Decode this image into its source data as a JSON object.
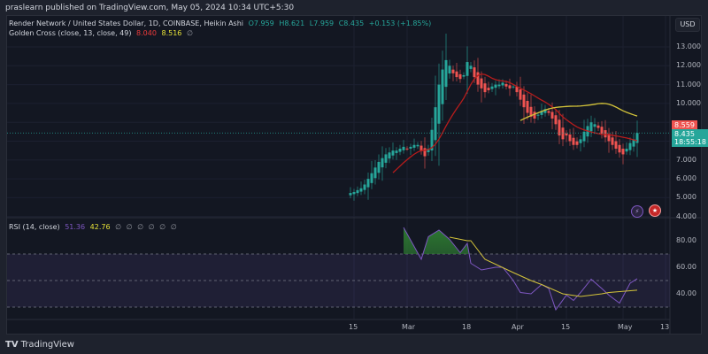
{
  "header": {
    "published": "praslearn published on TradingView.com, May 05, 2024 10:34 UTC+5:30"
  },
  "main_legend": {
    "symbol": "Render Network / United States Dollar, 1D, COINBASE, Heikin Ashi",
    "o": "O7.959",
    "h": "H8.621",
    "l": "L7.959",
    "c": "C8.435",
    "change": "+0.153 (+1.85%)"
  },
  "golden_cross": {
    "label": "Golden Cross (close, 13, close, 49)",
    "fast": "8.040",
    "slow": "8.516",
    "hidden": "∅"
  },
  "rsi_legend": {
    "label": "RSI (14, close)",
    "rsi": "51.36",
    "ma": "42.76",
    "hidden": [
      "∅",
      "∅",
      "∅",
      "∅",
      "∅",
      "∅"
    ]
  },
  "currency": "USD",
  "price_labels": {
    "ma_value": "8.559",
    "last_price": "8.435",
    "countdown": "18:55:18"
  },
  "brand": "TradingView",
  "colors": {
    "up": "#26a69a",
    "down": "#ef5350",
    "fast_ma": "#b71c1c",
    "slow_ma": "#d4c43a",
    "rsi": "#7e57c2",
    "rsi_ma": "#d4c43a"
  },
  "chart_data": [
    {
      "type": "candlestick",
      "style": "Heikin Ashi",
      "start_date": "2024-02-14",
      "interval": "1D",
      "closes": [
        5.25,
        5.3,
        5.4,
        5.5,
        5.7,
        6.0,
        6.3,
        6.6,
        6.9,
        7.1,
        7.3,
        7.4,
        7.5,
        7.5,
        7.6,
        7.7,
        7.6,
        7.7,
        7.8,
        7.8,
        7.5,
        7.2,
        7.6,
        8.6,
        9.8,
        11.0,
        11.8,
        12.3,
        12.0,
        11.6,
        11.4,
        11.3,
        11.5,
        12.2,
        12.0,
        11.4,
        11.0,
        10.8,
        10.6,
        10.7,
        10.9,
        11.0,
        11.0,
        11.1,
        10.9,
        10.8,
        10.9,
        10.6,
        10.2,
        9.8,
        9.5,
        9.3,
        9.2,
        9.4,
        9.6,
        9.7,
        9.5,
        9.2,
        8.9,
        8.3,
        8.1,
        8.3,
        8.0,
        7.8,
        7.8,
        8.1,
        8.5,
        8.8,
        9.0,
        8.9,
        8.7,
        8.4,
        8.2,
        8.0,
        7.8,
        7.6,
        7.4,
        7.3,
        7.6,
        7.9,
        8.1,
        8.435
      ],
      "indicators": [
        {
          "name": "Golden Cross fast",
          "period": 13
        },
        {
          "name": "Golden Cross slow",
          "period": 49
        }
      ],
      "y_ticks": [
        "13.000",
        "12.000",
        "11.000",
        "10.000",
        "7.000",
        "6.000",
        "5.000",
        "4.000"
      ],
      "ylim": [
        4,
        13.5
      ],
      "x_ticks": [
        "15",
        "Mar",
        "18",
        "Apr",
        "15",
        "May",
        "13"
      ],
      "grid": true
    },
    {
      "type": "line",
      "title": "RSI (14, close)",
      "rsi": [
        [
          "2024-02-29",
          90
        ],
        [
          "2024-03-05",
          66
        ],
        [
          "2024-03-07",
          83
        ],
        [
          "2024-03-10",
          88
        ],
        [
          "2024-03-13",
          81
        ],
        [
          "2024-03-16",
          71
        ],
        [
          "2024-03-18",
          78
        ],
        [
          "2024-03-19",
          63
        ],
        [
          "2024-03-22",
          58
        ],
        [
          "2024-03-26",
          60
        ],
        [
          "2024-03-28",
          60
        ],
        [
          "2024-03-31",
          50
        ],
        [
          "2024-04-02",
          41
        ],
        [
          "2024-04-05",
          40
        ],
        [
          "2024-04-08",
          47
        ],
        [
          "2024-04-10",
          44
        ],
        [
          "2024-04-12",
          28
        ],
        [
          "2024-04-15",
          39
        ],
        [
          "2024-04-17",
          35
        ],
        [
          "2024-04-19",
          41
        ],
        [
          "2024-04-22",
          51
        ],
        [
          "2024-04-25",
          44
        ],
        [
          "2024-04-27",
          39
        ],
        [
          "2024-04-30",
          33
        ],
        [
          "2024-05-03",
          48
        ],
        [
          "2024-05-05",
          51.36
        ]
      ],
      "rsi_ma": [
        [
          "2024-03-13",
          82.7
        ],
        [
          "2024-03-18",
          80
        ],
        [
          "2024-03-19",
          80
        ],
        [
          "2024-03-23",
          66
        ],
        [
          "2024-03-31",
          56
        ],
        [
          "2024-04-05",
          50
        ],
        [
          "2024-04-08",
          47
        ],
        [
          "2024-04-14",
          40
        ],
        [
          "2024-04-19",
          38
        ],
        [
          "2024-04-25",
          40
        ],
        [
          "2024-04-27",
          41
        ],
        [
          "2024-05-05",
          42.76
        ]
      ],
      "bands": [
        30,
        50,
        70
      ],
      "y_ticks": [
        "80.00",
        "60.00",
        "40.00"
      ],
      "ylim": [
        20,
        90
      ]
    }
  ]
}
